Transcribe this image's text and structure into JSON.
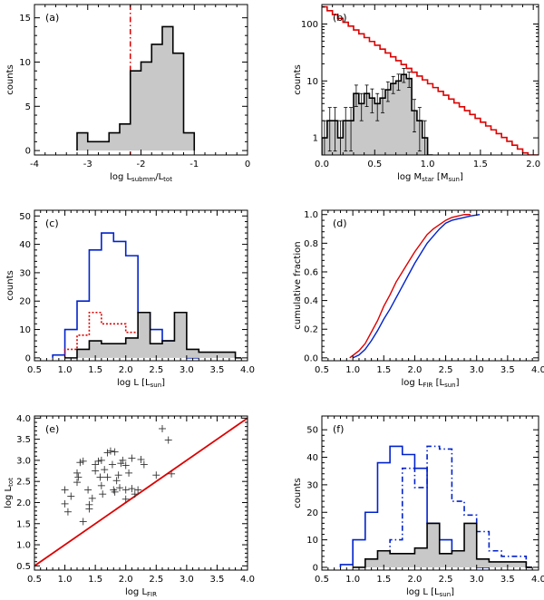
{
  "colors": {
    "red": "#dd0000",
    "blue": "#0022cc",
    "gray": "#c8c8c8",
    "black": "#000000"
  },
  "chart_data": [
    {
      "id": "a",
      "type": "bar",
      "label": "(a)",
      "xlabel": "log L",
      "xlabel_sub": "submm",
      "xlabel_sep": "/L",
      "xlabel_sub2": "tot",
      "ylabel": "counts",
      "xlim": [
        -4,
        0
      ],
      "ylim": [
        -0.5,
        16.5
      ],
      "xticks": [
        -4,
        -3,
        -2,
        -1,
        0
      ],
      "yticks": [
        0,
        5,
        10,
        15
      ],
      "vline": {
        "x": -2.2,
        "style": "dashdot",
        "color": "#dd0000"
      },
      "series": [
        {
          "style": "filled",
          "color": "#000000",
          "bins": [
            [
              -3.2,
              -3.0,
              2
            ],
            [
              -3.0,
              -2.8,
              1
            ],
            [
              -2.8,
              -2.6,
              1
            ],
            [
              -2.6,
              -2.4,
              2
            ],
            [
              -2.4,
              -2.2,
              3
            ],
            [
              -2.2,
              -2.0,
              9
            ],
            [
              -2.0,
              -1.8,
              10
            ],
            [
              -1.8,
              -1.6,
              12
            ],
            [
              -1.6,
              -1.4,
              14
            ],
            [
              -1.4,
              -1.2,
              11
            ],
            [
              -1.2,
              -1.0,
              2
            ]
          ]
        }
      ]
    },
    {
      "id": "b",
      "type": "bar",
      "label": "(b)",
      "xlabel": "log M",
      "xlabel_sub": "star",
      "xlabel_bracket": " [M",
      "xlabel_sub2": "sun",
      "xlabel_end": "]",
      "ylabel": "counts",
      "yscale": "log",
      "xlim": [
        0,
        2.05
      ],
      "ylim": [
        0.5,
        220
      ],
      "xticks": [
        0,
        0.5,
        1.0,
        1.5,
        2.0
      ],
      "xticklabels": [
        "0.0",
        "0.5",
        "1.0",
        "1.5",
        "2.0"
      ],
      "yticks": [
        1,
        10,
        100
      ],
      "yticklabels": [
        "1",
        "10",
        "100"
      ],
      "series": [
        {
          "style": "filled",
          "color": "#000000",
          "bins": [
            [
              0.0,
              0.05,
              1
            ],
            [
              0.05,
              0.1,
              2
            ],
            [
              0.1,
              0.15,
              2
            ],
            [
              0.15,
              0.2,
              1
            ],
            [
              0.2,
              0.25,
              2
            ],
            [
              0.25,
              0.3,
              2
            ],
            [
              0.3,
              0.35,
              6
            ],
            [
              0.35,
              0.4,
              4
            ],
            [
              0.4,
              0.45,
              6
            ],
            [
              0.45,
              0.5,
              5
            ],
            [
              0.5,
              0.55,
              4
            ],
            [
              0.55,
              0.6,
              5
            ],
            [
              0.6,
              0.65,
              7
            ],
            [
              0.65,
              0.7,
              9
            ],
            [
              0.7,
              0.75,
              10
            ],
            [
              0.75,
              0.8,
              13
            ],
            [
              0.8,
              0.85,
              11
            ],
            [
              0.85,
              0.9,
              3
            ],
            [
              0.9,
              0.95,
              2
            ],
            [
              0.95,
              1.0,
              1
            ],
            [
              1.0,
              1.05,
              0.5
            ]
          ]
        },
        {
          "style": "step",
          "color": "#dd0000",
          "model": {
            "y0": 200,
            "slope": -1.35,
            "step": 0.05,
            "xmax": 2.05
          }
        }
      ]
    },
    {
      "id": "c",
      "type": "bar",
      "label": "(c)",
      "xlabel": "log L",
      "xlabel_bracket": " [L",
      "xlabel_sub2": "sun",
      "xlabel_end": "]",
      "ylabel": "counts",
      "xlim": [
        0.5,
        4.0
      ],
      "ylim": [
        -1,
        52
      ],
      "xticks": [
        0.5,
        1.0,
        1.5,
        2.0,
        2.5,
        3.0,
        3.5,
        4.0
      ],
      "xticklabels": [
        "0.5",
        "1.0",
        "1.5",
        "2.0",
        "2.5",
        "3.0",
        "3.5",
        "4.0"
      ],
      "yticks": [
        0,
        10,
        20,
        30,
        40,
        50
      ],
      "series": [
        {
          "style": "step",
          "color": "#0022cc",
          "bins": [
            [
              0.8,
              1.0,
              1
            ],
            [
              1.0,
              1.2,
              10
            ],
            [
              1.2,
              1.4,
              20
            ],
            [
              1.4,
              1.6,
              38
            ],
            [
              1.6,
              1.8,
              44
            ],
            [
              1.8,
              2.0,
              41
            ],
            [
              2.0,
              2.2,
              36
            ],
            [
              2.2,
              2.4,
              16
            ],
            [
              2.4,
              2.6,
              10
            ],
            [
              2.6,
              2.8,
              6
            ],
            [
              2.8,
              3.0,
              3
            ],
            [
              3.0,
              3.2,
              0
            ]
          ]
        },
        {
          "style": "dotted",
          "color": "#dd0000",
          "bins": [
            [
              1.0,
              1.2,
              3
            ],
            [
              1.2,
              1.4,
              8
            ],
            [
              1.4,
              1.6,
              16
            ],
            [
              1.6,
              1.8,
              12
            ],
            [
              1.8,
              2.0,
              12
            ],
            [
              2.0,
              2.2,
              9
            ],
            [
              2.2,
              2.4,
              2
            ],
            [
              2.4,
              2.6,
              1
            ]
          ]
        },
        {
          "style": "filled",
          "color": "#000000",
          "bins": [
            [
              1.0,
              1.2,
              0
            ],
            [
              1.2,
              1.4,
              3
            ],
            [
              1.4,
              1.6,
              6
            ],
            [
              1.6,
              1.8,
              5
            ],
            [
              1.8,
              2.0,
              5
            ],
            [
              2.0,
              2.2,
              7
            ],
            [
              2.2,
              2.4,
              16
            ],
            [
              2.4,
              2.6,
              5
            ],
            [
              2.6,
              2.8,
              6
            ],
            [
              2.8,
              3.0,
              16
            ],
            [
              3.0,
              3.2,
              3
            ],
            [
              3.2,
              3.4,
              2
            ],
            [
              3.4,
              3.6,
              2
            ],
            [
              3.6,
              3.8,
              2
            ],
            [
              3.8,
              3.9,
              0
            ]
          ]
        }
      ]
    },
    {
      "id": "d",
      "type": "line",
      "label": "(d)",
      "xlabel": "log L",
      "xlabel_sub": "FIR",
      "xlabel_bracket": " [L",
      "xlabel_sub2": "sun",
      "xlabel_end": "]",
      "ylabel": "cumulative fraction",
      "xlim": [
        0.5,
        4.0
      ],
      "ylim": [
        -0.02,
        1.03
      ],
      "xticks": [
        0.5,
        1.0,
        1.5,
        2.0,
        2.5,
        3.0,
        3.5,
        4.0
      ],
      "xticklabels": [
        "0.5",
        "1.0",
        "1.5",
        "2.0",
        "2.5",
        "3.0",
        "3.5",
        "4.0"
      ],
      "yticks": [
        0,
        0.2,
        0.4,
        0.6,
        0.8,
        1.0
      ],
      "yticklabels": [
        "0.0",
        "0.2",
        "0.4",
        "0.6",
        "0.8",
        "1.0"
      ],
      "series": [
        {
          "color": "#dd0000",
          "x": [
            0.95,
            1.1,
            1.2,
            1.3,
            1.4,
            1.5,
            1.6,
            1.7,
            1.8,
            1.9,
            2.0,
            2.1,
            2.2,
            2.3,
            2.4,
            2.5,
            2.6,
            2.7,
            2.8,
            2.9
          ],
          "y": [
            0.0,
            0.05,
            0.1,
            0.18,
            0.26,
            0.36,
            0.44,
            0.53,
            0.6,
            0.67,
            0.74,
            0.8,
            0.86,
            0.9,
            0.93,
            0.96,
            0.98,
            0.99,
            1.0,
            1.0
          ]
        },
        {
          "color": "#0022cc",
          "x": [
            1.0,
            1.1,
            1.2,
            1.3,
            1.4,
            1.5,
            1.6,
            1.7,
            1.8,
            1.9,
            2.0,
            2.1,
            2.2,
            2.3,
            2.4,
            2.5,
            2.6,
            2.7,
            2.8,
            2.9,
            3.05
          ],
          "y": [
            0.0,
            0.02,
            0.06,
            0.12,
            0.19,
            0.27,
            0.34,
            0.42,
            0.5,
            0.58,
            0.66,
            0.73,
            0.8,
            0.85,
            0.9,
            0.94,
            0.96,
            0.97,
            0.98,
            0.99,
            1.0
          ]
        }
      ]
    },
    {
      "id": "e",
      "type": "scatter",
      "label": "(e)",
      "xlabel": "log L",
      "xlabel_sub": "FIR",
      "ylabel": "log L",
      "ylabel_sub": "tot",
      "xlim": [
        0.5,
        4.0
      ],
      "ylim": [
        0.4,
        4.05
      ],
      "xticks": [
        0.5,
        1.0,
        1.5,
        2.0,
        2.5,
        3.0,
        3.5,
        4.0
      ],
      "xticklabels": [
        "0.5",
        "1.0",
        "1.5",
        "2.0",
        "2.5",
        "3.0",
        "3.5",
        "4.0"
      ],
      "yticks": [
        0.5,
        1.0,
        1.5,
        2.0,
        2.5,
        3.0,
        3.5,
        4.0
      ],
      "yticklabels": [
        "0.5",
        "1.0",
        "1.5",
        "2.0",
        "2.5",
        "3.0",
        "3.5",
        "4.0"
      ],
      "line": {
        "x": [
          0.5,
          4.0
        ],
        "y": [
          0.5,
          4.0
        ],
        "color": "#dd0000"
      },
      "points": [
        [
          1.05,
          1.78
        ],
        [
          1.0,
          1.97
        ],
        [
          1.0,
          2.3
        ],
        [
          1.1,
          2.15
        ],
        [
          1.2,
          2.48
        ],
        [
          1.22,
          2.6
        ],
        [
          1.2,
          2.7
        ],
        [
          1.25,
          2.95
        ],
        [
          1.3,
          2.98
        ],
        [
          1.38,
          2.3
        ],
        [
          1.3,
          1.55
        ],
        [
          1.4,
          1.95
        ],
        [
          1.45,
          2.1
        ],
        [
          1.5,
          2.9
        ],
        [
          1.5,
          2.75
        ],
        [
          1.55,
          2.98
        ],
        [
          1.6,
          2.4
        ],
        [
          1.6,
          3.0
        ],
        [
          1.62,
          2.2
        ],
        [
          1.65,
          2.78
        ],
        [
          1.7,
          3.18
        ],
        [
          1.75,
          3.22
        ],
        [
          1.78,
          2.9
        ],
        [
          1.8,
          2.3
        ],
        [
          1.82,
          2.25
        ],
        [
          1.82,
          3.2
        ],
        [
          1.85,
          2.52
        ],
        [
          1.88,
          2.65
        ],
        [
          1.9,
          2.35
        ],
        [
          1.92,
          2.93
        ],
        [
          1.95,
          3.0
        ],
        [
          2.0,
          2.3
        ],
        [
          2.0,
          2.88
        ],
        [
          2.05,
          2.7
        ],
        [
          2.1,
          3.05
        ],
        [
          2.1,
          2.33
        ],
        [
          2.15,
          2.2
        ],
        [
          2.2,
          2.3
        ],
        [
          2.25,
          3.02
        ],
        [
          2.3,
          2.9
        ],
        [
          2.5,
          2.65
        ],
        [
          2.6,
          3.75
        ],
        [
          2.7,
          3.48
        ],
        [
          2.75,
          2.68
        ],
        [
          1.58,
          2.6
        ],
        [
          1.4,
          1.85
        ],
        [
          1.7,
          2.6
        ],
        [
          2.0,
          2.08
        ]
      ]
    },
    {
      "id": "f",
      "type": "bar",
      "label": "(f)",
      "xlabel": "log L",
      "xlabel_bracket": " [L",
      "xlabel_sub2": "sun",
      "xlabel_end": "]",
      "ylabel": "counts",
      "xlim": [
        0.5,
        4.0
      ],
      "ylim": [
        -1,
        55
      ],
      "xticks": [
        0.5,
        1.0,
        1.5,
        2.0,
        2.5,
        3.0,
        3.5,
        4.0
      ],
      "xticklabels": [
        "0.5",
        "1.0",
        "1.5",
        "2.0",
        "2.5",
        "3.0",
        "3.5",
        "4.0"
      ],
      "yticks": [
        0,
        10,
        20,
        30,
        40,
        50
      ],
      "series": [
        {
          "style": "step",
          "color": "#0022cc",
          "bins": [
            [
              0.8,
              1.0,
              1
            ],
            [
              1.0,
              1.2,
              10
            ],
            [
              1.2,
              1.4,
              20
            ],
            [
              1.4,
              1.6,
              38
            ],
            [
              1.6,
              1.8,
              44
            ],
            [
              1.8,
              2.0,
              41
            ],
            [
              2.0,
              2.2,
              36
            ],
            [
              2.2,
              2.4,
              16
            ],
            [
              2.4,
              2.6,
              10
            ],
            [
              2.6,
              2.8,
              6
            ],
            [
              2.8,
              3.0,
              3
            ],
            [
              3.0,
              3.2,
              0
            ]
          ]
        },
        {
          "style": "dashdot",
          "color": "#0022cc",
          "bins": [
            [
              1.4,
              1.6,
              4
            ],
            [
              1.6,
              1.8,
              10
            ],
            [
              1.8,
              2.0,
              36
            ],
            [
              2.0,
              2.2,
              29
            ],
            [
              2.2,
              2.4,
              44
            ],
            [
              2.4,
              2.6,
              43
            ],
            [
              2.6,
              2.8,
              24
            ],
            [
              2.8,
              3.0,
              19
            ],
            [
              3.0,
              3.2,
              13
            ],
            [
              3.2,
              3.4,
              6
            ],
            [
              3.4,
              3.6,
              4
            ],
            [
              3.6,
              3.8,
              4
            ],
            [
              3.8,
              3.9,
              0
            ]
          ]
        },
        {
          "style": "filled",
          "color": "#000000",
          "bins": [
            [
              1.0,
              1.2,
              0
            ],
            [
              1.2,
              1.4,
              3
            ],
            [
              1.4,
              1.6,
              6
            ],
            [
              1.6,
              1.8,
              5
            ],
            [
              1.8,
              2.0,
              5
            ],
            [
              2.0,
              2.2,
              7
            ],
            [
              2.2,
              2.4,
              16
            ],
            [
              2.4,
              2.6,
              5
            ],
            [
              2.6,
              2.8,
              6
            ],
            [
              2.8,
              3.0,
              16
            ],
            [
              3.0,
              3.2,
              3
            ],
            [
              3.2,
              3.4,
              2
            ],
            [
              3.4,
              3.6,
              2
            ],
            [
              3.6,
              3.8,
              2
            ],
            [
              3.8,
              3.9,
              0
            ]
          ]
        }
      ]
    }
  ]
}
